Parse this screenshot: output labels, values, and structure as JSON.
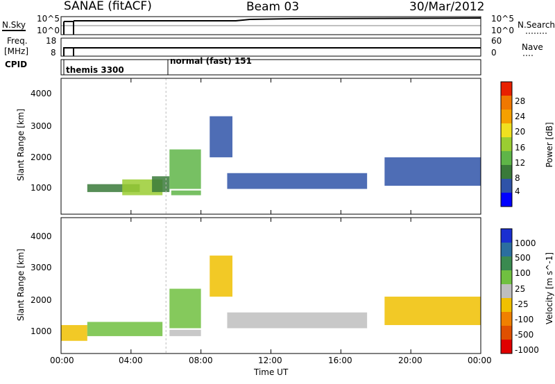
{
  "header": {
    "title": "SANAE (fitACF)",
    "beam": "Beam 03",
    "date": "30/Mar/2012"
  },
  "noise_panel": {
    "left_label": "N.Sky",
    "right_label": "N.Search",
    "left_ticks": [
      "10^5",
      "10^0"
    ],
    "right_ticks": [
      "10^5",
      "10^0"
    ]
  },
  "freq_panel": {
    "left_label_line1": "Freq.",
    "left_label_line2": "[MHz]",
    "right_label": "Nave",
    "left_ticks": [
      "18",
      "8"
    ],
    "right_ticks": [
      "60",
      "0"
    ]
  },
  "cpid_panel": {
    "label": "CPID",
    "modes": [
      {
        "name": "themis 3300",
        "start_hour": 0.0
      },
      {
        "name": "normal (fast) 151",
        "start_hour": 6.0
      }
    ]
  },
  "colors": {
    "power": [
      "#0000ff",
      "#2f53a8",
      "#3a7a3a",
      "#5fb548",
      "#9acd32",
      "#f0e020",
      "#f5a000",
      "#f07800",
      "#e82000"
    ],
    "velocity": [
      "#1a2fd0",
      "#2b6e9f",
      "#3a8a50",
      "#70c040",
      "#bebebe",
      "#f0c000",
      "#f08000",
      "#e05000",
      "#e00000"
    ]
  },
  "chart_data": [
    {
      "type": "heatmap",
      "name": "power-panel",
      "ylabel": "Slant Range [km]",
      "xlabel": "",
      "xlim": [
        0,
        24
      ],
      "ylim": [
        200,
        4500
      ],
      "yticks": [
        "1000",
        "2000",
        "3000",
        "4000"
      ],
      "colorbar": {
        "label": "Power [dB]",
        "ticks": [
          "4",
          "8",
          "12",
          "16",
          "20",
          "24",
          "28"
        ]
      },
      "features": [
        {
          "x": [
            1.5,
            4.5
          ],
          "y": [
            900,
            1150
          ],
          "value": 10
        },
        {
          "x": [
            3.5,
            5.8
          ],
          "y": [
            800,
            1300
          ],
          "value": 16
        },
        {
          "x": [
            5.2,
            6.2
          ],
          "y": [
            900,
            1400
          ],
          "value": 10
        },
        {
          "x": [
            6.3,
            8.0
          ],
          "y": [
            800,
            950
          ],
          "value": 14
        },
        {
          "x": [
            6.2,
            8.0
          ],
          "y": [
            1000,
            2250
          ],
          "value": 12
        },
        {
          "x": [
            8.5,
            9.8
          ],
          "y": [
            2000,
            3300
          ],
          "value": 8
        },
        {
          "x": [
            9.5,
            17.5
          ],
          "y": [
            1000,
            1500
          ],
          "value": 6
        },
        {
          "x": [
            18.5,
            24.0
          ],
          "y": [
            1100,
            2000
          ],
          "value": 6
        }
      ]
    },
    {
      "type": "heatmap",
      "name": "velocity-panel",
      "ylabel": "Slant Range [km]",
      "xlabel": "Time UT",
      "xlim": [
        0,
        24
      ],
      "ylim": [
        200,
        4500
      ],
      "yticks": [
        "1000",
        "2000",
        "3000",
        "4000"
      ],
      "xticks": [
        "00:00",
        "04:00",
        "08:00",
        "12:00",
        "16:00",
        "20:00",
        "00:00"
      ],
      "colorbar": {
        "label": "Velocity [m s^-1]",
        "ticks": [
          "1000",
          "500",
          "100",
          "25",
          "-25",
          "-100",
          "-500",
          "-1000"
        ]
      },
      "features": [
        {
          "x": [
            0.0,
            1.5
          ],
          "y": [
            600,
            1100
          ],
          "value": -300
        },
        {
          "x": [
            1.5,
            5.8
          ],
          "y": [
            750,
            1200
          ],
          "value": 200
        },
        {
          "x": [
            6.2,
            8.0
          ],
          "y": [
            750,
            950
          ],
          "value": 0
        },
        {
          "x": [
            6.2,
            8.0
          ],
          "y": [
            1000,
            2250
          ],
          "value": 300
        },
        {
          "x": [
            8.5,
            9.8
          ],
          "y": [
            2000,
            3300
          ],
          "value": -300
        },
        {
          "x": [
            9.5,
            17.5
          ],
          "y": [
            1000,
            1500
          ],
          "value": 0
        },
        {
          "x": [
            18.5,
            24.0
          ],
          "y": [
            1100,
            2000
          ],
          "value": -300
        }
      ]
    }
  ]
}
